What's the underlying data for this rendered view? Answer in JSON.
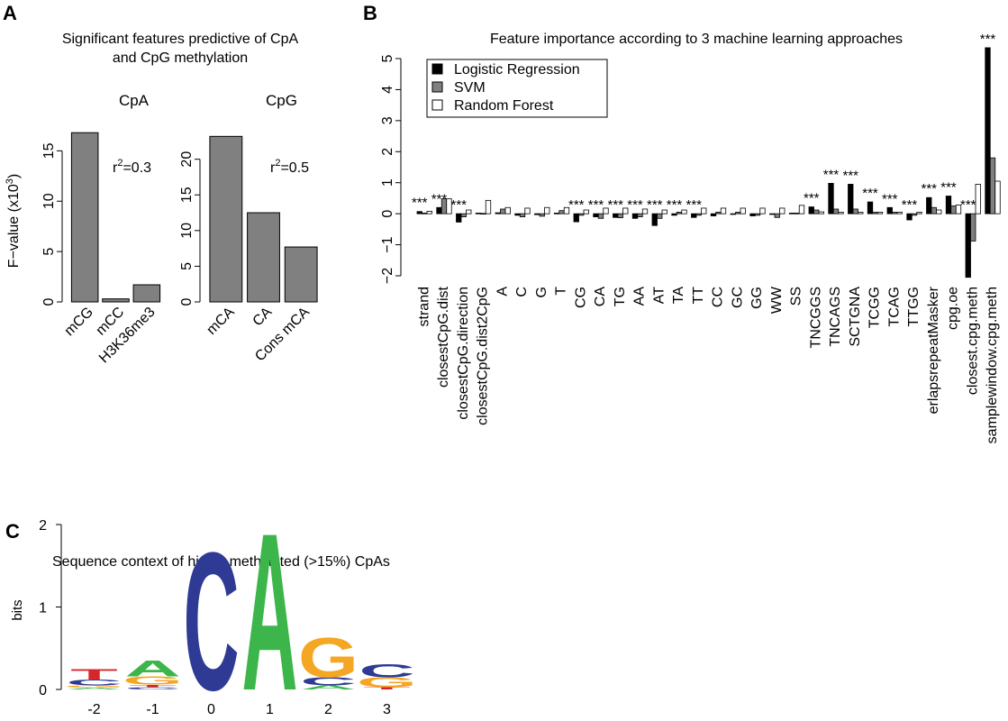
{
  "panels": {
    "a": {
      "letter": "A",
      "title_line1": "Significant features predictive of CpA",
      "title_line2": "and CpG methylation",
      "ylabel": "F−value (x10",
      "ylabel_sup": "3",
      "ylabel_end": ")"
    },
    "b": {
      "letter": "B",
      "title": "Feature importance according to 3 machine learning approaches"
    },
    "c": {
      "letter": "C",
      "title": "Sequence context of highly methylated (>15%)  CpAs"
    }
  },
  "chart_data": [
    {
      "type": "bar",
      "title": "CpA",
      "categories": [
        "mCG",
        "mCC",
        "H3K36me3"
      ],
      "values": [
        16.8,
        0.3,
        1.7
      ],
      "ylim": [
        0,
        17
      ],
      "yticks": [
        0,
        5,
        10,
        15
      ],
      "annotation": {
        "prefix": "r",
        "sup": "2",
        "text": "=0.3"
      },
      "color": "#808080"
    },
    {
      "type": "bar",
      "title": "CpG",
      "categories": [
        "mCA",
        "CA",
        "Cons mCA"
      ],
      "values": [
        23.2,
        12.5,
        7.7
      ],
      "ylim": [
        0,
        24
      ],
      "yticks": [
        0,
        5,
        10,
        15,
        20
      ],
      "annotation": {
        "prefix": "r",
        "sup": "2",
        "text": "=0.5"
      },
      "color": "#808080"
    },
    {
      "type": "bar",
      "title": "Feature importance according to 3 machine learning approaches",
      "ylim": [
        -2,
        5.5
      ],
      "yticks": [
        -2,
        -1,
        0,
        1,
        2,
        3,
        4,
        5
      ],
      "categories": [
        "strand",
        "closestCpG.dist",
        "closestCpG.direction",
        "closestCpG.dist2CpG",
        "A",
        "C",
        "G",
        "T",
        "CG",
        "CA",
        "TG",
        "AA",
        "AT",
        "TA",
        "TT",
        "CC",
        "GC",
        "GG",
        "WW",
        "SS",
        "TNCGGS",
        "TNCAGS",
        "SCTGNA",
        "TCGG",
        "TCAG",
        "TTGG",
        "erlapsrepeatMasker",
        "cpg.oe",
        "closest.cpg.meth",
        "samplewindow.cpg.meth"
      ],
      "series": [
        {
          "name": "Logistic Regression",
          "color": "#000000",
          "values": [
            0.07,
            0.2,
            -0.27,
            0.02,
            0.03,
            -0.05,
            -0.03,
            0.02,
            -0.26,
            -0.1,
            -0.12,
            -0.15,
            -0.38,
            -0.05,
            -0.12,
            -0.07,
            -0.02,
            -0.07,
            -0.02,
            0.02,
            0.22,
            0.98,
            0.95,
            0.38,
            0.2,
            -0.2,
            0.52,
            0.57,
            -2.05,
            5.35
          ]
        },
        {
          "name": "SVM",
          "color": "#808080",
          "values": [
            0.02,
            0.48,
            -0.1,
            0.01,
            0.15,
            -0.1,
            -0.08,
            0.1,
            -0.05,
            -0.15,
            -0.13,
            -0.1,
            -0.15,
            0.05,
            -0.05,
            0.05,
            0.05,
            -0.05,
            -0.12,
            0.02,
            0.12,
            0.15,
            0.15,
            0.05,
            0.05,
            -0.05,
            0.2,
            0.25,
            -0.88,
            1.8
          ]
        },
        {
          "name": "Random Forest",
          "color": "#ffffff",
          "values": [
            0.08,
            0.48,
            0.12,
            0.43,
            0.2,
            0.18,
            0.2,
            0.2,
            0.12,
            0.18,
            0.18,
            0.15,
            0.12,
            0.12,
            0.18,
            0.18,
            0.18,
            0.18,
            0.18,
            0.27,
            0.06,
            0.05,
            0.05,
            0.05,
            0.05,
            0.05,
            0.12,
            0.28,
            0.95,
            1.05
          ]
        }
      ],
      "significance_marker": "***",
      "legend_position": "top-left"
    },
    {
      "type": "sequence-logo",
      "ylabel": "bits",
      "ylim": [
        0,
        2
      ],
      "yticks": [
        0,
        1,
        2
      ],
      "positions": [
        "-2",
        "-1",
        "0",
        "1",
        "2",
        "3"
      ],
      "letter_colors": {
        "A": "#3cb64a",
        "C": "#2e3a94",
        "G": "#f5a623",
        "T": "#d6262a"
      },
      "letter_heights": [
        [
          {
            "letter": "A",
            "bits": 0.02
          },
          {
            "letter": "G",
            "bits": 0.03
          },
          {
            "letter": "C",
            "bits": 0.07
          },
          {
            "letter": "T",
            "bits": 0.13
          }
        ],
        [
          {
            "letter": "C",
            "bits": 0.03
          },
          {
            "letter": "T",
            "bits": 0.03
          },
          {
            "letter": "G",
            "bits": 0.1
          },
          {
            "letter": "A",
            "bits": 0.2
          }
        ],
        [
          {
            "letter": "C",
            "bits": 1.72
          }
        ],
        [
          {
            "letter": "A",
            "bits": 1.96
          }
        ],
        [
          {
            "letter": "A",
            "bits": 0.05
          },
          {
            "letter": "C",
            "bits": 0.1
          },
          {
            "letter": "G",
            "bits": 0.5
          }
        ],
        [
          {
            "letter": "T",
            "bits": 0.03
          },
          {
            "letter": "G",
            "bits": 0.12
          },
          {
            "letter": "C",
            "bits": 0.17
          }
        ]
      ]
    }
  ]
}
